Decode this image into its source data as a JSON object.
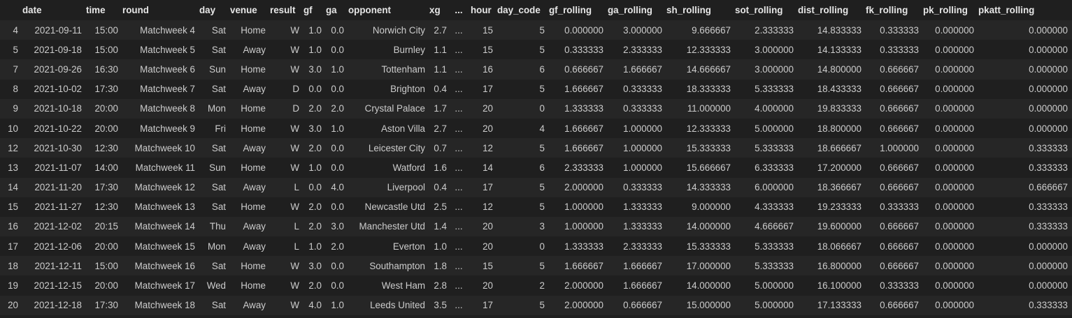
{
  "columns": [
    "",
    "date",
    "time",
    "round",
    "day",
    "venue",
    "result",
    "gf",
    "ga",
    "opponent",
    "xg",
    "...",
    "hour",
    "day_code",
    "gf_rolling",
    "ga_rolling",
    "sh_rolling",
    "sot_rolling",
    "dist_rolling",
    "fk_rolling",
    "pk_rolling",
    "pkatt_rolling"
  ],
  "rows": [
    [
      "4",
      "2021-09-11",
      "15:00",
      "Matchweek 4",
      "Sat",
      "Home",
      "W",
      "1.0",
      "0.0",
      "Norwich City",
      "2.7",
      "...",
      "15",
      "5",
      "0.000000",
      "3.000000",
      "9.666667",
      "2.333333",
      "14.833333",
      "0.333333",
      "0.000000",
      "0.000000"
    ],
    [
      "5",
      "2021-09-18",
      "15:00",
      "Matchweek 5",
      "Sat",
      "Away",
      "W",
      "1.0",
      "0.0",
      "Burnley",
      "1.1",
      "...",
      "15",
      "5",
      "0.333333",
      "2.333333",
      "12.333333",
      "3.000000",
      "14.133333",
      "0.333333",
      "0.000000",
      "0.000000"
    ],
    [
      "7",
      "2021-09-26",
      "16:30",
      "Matchweek 6",
      "Sun",
      "Home",
      "W",
      "3.0",
      "1.0",
      "Tottenham",
      "1.1",
      "...",
      "16",
      "6",
      "0.666667",
      "1.666667",
      "14.666667",
      "3.000000",
      "14.800000",
      "0.666667",
      "0.000000",
      "0.000000"
    ],
    [
      "8",
      "2021-10-02",
      "17:30",
      "Matchweek 7",
      "Sat",
      "Away",
      "D",
      "0.0",
      "0.0",
      "Brighton",
      "0.4",
      "...",
      "17",
      "5",
      "1.666667",
      "0.333333",
      "18.333333",
      "5.333333",
      "18.433333",
      "0.666667",
      "0.000000",
      "0.000000"
    ],
    [
      "9",
      "2021-10-18",
      "20:00",
      "Matchweek 8",
      "Mon",
      "Home",
      "D",
      "2.0",
      "2.0",
      "Crystal Palace",
      "1.7",
      "...",
      "20",
      "0",
      "1.333333",
      "0.333333",
      "11.000000",
      "4.000000",
      "19.833333",
      "0.666667",
      "0.000000",
      "0.000000"
    ],
    [
      "10",
      "2021-10-22",
      "20:00",
      "Matchweek 9",
      "Fri",
      "Home",
      "W",
      "3.0",
      "1.0",
      "Aston Villa",
      "2.7",
      "...",
      "20",
      "4",
      "1.666667",
      "1.000000",
      "12.333333",
      "5.000000",
      "18.800000",
      "0.666667",
      "0.000000",
      "0.000000"
    ],
    [
      "12",
      "2021-10-30",
      "12:30",
      "Matchweek 10",
      "Sat",
      "Away",
      "W",
      "2.0",
      "0.0",
      "Leicester City",
      "0.7",
      "...",
      "12",
      "5",
      "1.666667",
      "1.000000",
      "15.333333",
      "5.333333",
      "18.666667",
      "1.000000",
      "0.000000",
      "0.333333"
    ],
    [
      "13",
      "2021-11-07",
      "14:00",
      "Matchweek 11",
      "Sun",
      "Home",
      "W",
      "1.0",
      "0.0",
      "Watford",
      "1.6",
      "...",
      "14",
      "6",
      "2.333333",
      "1.000000",
      "15.666667",
      "6.333333",
      "17.200000",
      "0.666667",
      "0.000000",
      "0.333333"
    ],
    [
      "14",
      "2021-11-20",
      "17:30",
      "Matchweek 12",
      "Sat",
      "Away",
      "L",
      "0.0",
      "4.0",
      "Liverpool",
      "0.4",
      "...",
      "17",
      "5",
      "2.000000",
      "0.333333",
      "14.333333",
      "6.000000",
      "18.366667",
      "0.666667",
      "0.000000",
      "0.666667"
    ],
    [
      "15",
      "2021-11-27",
      "12:30",
      "Matchweek 13",
      "Sat",
      "Home",
      "W",
      "2.0",
      "0.0",
      "Newcastle Utd",
      "2.5",
      "...",
      "12",
      "5",
      "1.000000",
      "1.333333",
      "9.000000",
      "4.333333",
      "19.233333",
      "0.333333",
      "0.000000",
      "0.333333"
    ],
    [
      "16",
      "2021-12-02",
      "20:15",
      "Matchweek 14",
      "Thu",
      "Away",
      "L",
      "2.0",
      "3.0",
      "Manchester Utd",
      "1.4",
      "...",
      "20",
      "3",
      "1.000000",
      "1.333333",
      "14.000000",
      "4.666667",
      "19.600000",
      "0.666667",
      "0.000000",
      "0.333333"
    ],
    [
      "17",
      "2021-12-06",
      "20:00",
      "Matchweek 15",
      "Mon",
      "Away",
      "L",
      "1.0",
      "2.0",
      "Everton",
      "1.0",
      "...",
      "20",
      "0",
      "1.333333",
      "2.333333",
      "15.333333",
      "5.333333",
      "18.066667",
      "0.666667",
      "0.000000",
      "0.000000"
    ],
    [
      "18",
      "2021-12-11",
      "15:00",
      "Matchweek 16",
      "Sat",
      "Home",
      "W",
      "3.0",
      "0.0",
      "Southampton",
      "1.8",
      "...",
      "15",
      "5",
      "1.666667",
      "1.666667",
      "17.000000",
      "5.333333",
      "16.800000",
      "0.666667",
      "0.000000",
      "0.000000"
    ],
    [
      "19",
      "2021-12-15",
      "20:00",
      "Matchweek 17",
      "Wed",
      "Home",
      "W",
      "2.0",
      "0.0",
      "West Ham",
      "2.8",
      "...",
      "20",
      "2",
      "2.000000",
      "1.666667",
      "14.000000",
      "5.000000",
      "16.100000",
      "0.333333",
      "0.000000",
      "0.000000"
    ],
    [
      "20",
      "2021-12-18",
      "17:30",
      "Matchweek 18",
      "Sat",
      "Away",
      "W",
      "4.0",
      "1.0",
      "Leeds United",
      "3.5",
      "...",
      "17",
      "5",
      "2.000000",
      "0.666667",
      "15.000000",
      "5.000000",
      "17.133333",
      "0.666667",
      "0.000000",
      "0.333333"
    ]
  ]
}
